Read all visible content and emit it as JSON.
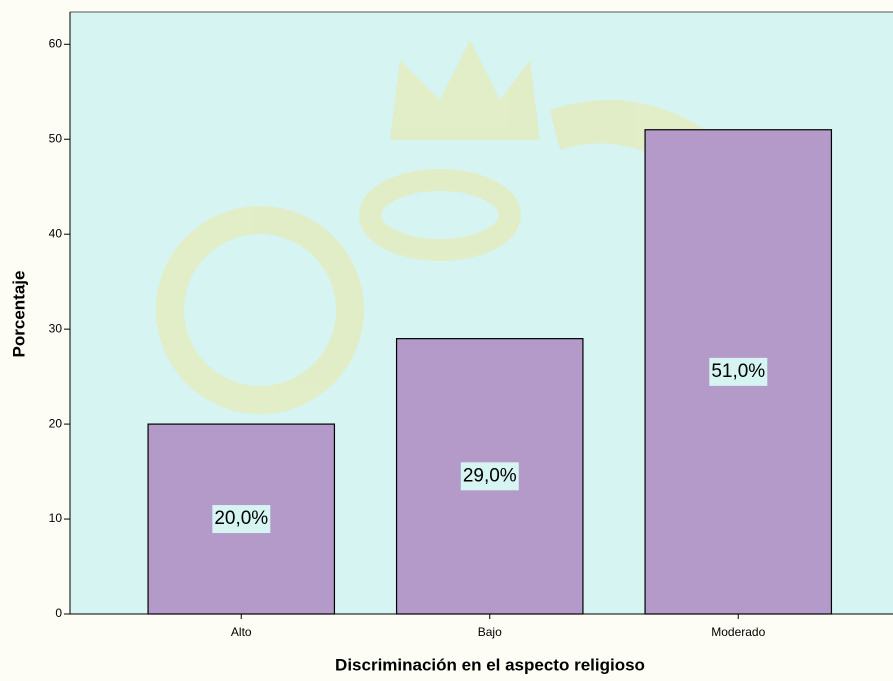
{
  "chart_data": {
    "type": "bar",
    "x_label": "Discriminación en el aspecto religioso",
    "y_label": "Porcentaje",
    "categories": [
      "Alto",
      "Bajo",
      "Moderado"
    ],
    "values": [
      20,
      29,
      51
    ],
    "value_labels": [
      "20,0%",
      "29,0%",
      "51,0%"
    ],
    "color": "#b49ac8",
    "ylim": [
      0,
      63.4
    ],
    "yticks": [
      0,
      10,
      20,
      30,
      40,
      50,
      60
    ],
    "grid": false
  }
}
